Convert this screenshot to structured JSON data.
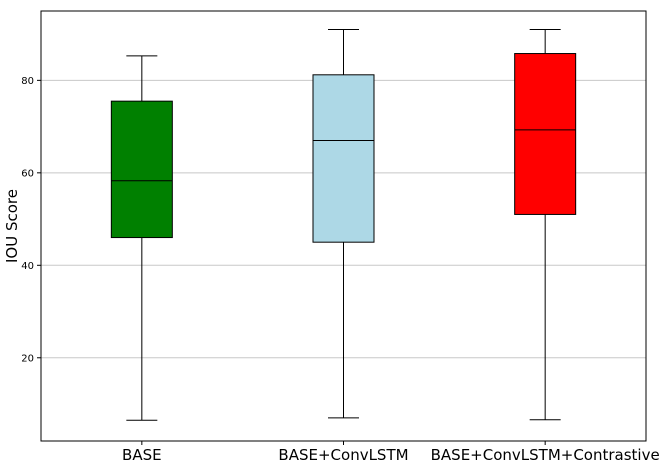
{
  "chart_data": {
    "type": "boxplot",
    "ylabel": "IOU Score",
    "xlabel": "",
    "title": "",
    "ylim": [
      2,
      95
    ],
    "yticks": [
      20,
      40,
      60,
      80
    ],
    "grid": "horizontal",
    "categories": [
      "BASE",
      "BASE+ConvLSTM",
      "BASE+ConvLSTM+Contrastive"
    ],
    "boxes": [
      {
        "category": "BASE",
        "whisker_low": 6.5,
        "q1": 46,
        "median": 58.3,
        "q3": 75.5,
        "whisker_high": 85.3,
        "color": "#008000"
      },
      {
        "category": "BASE+ConvLSTM",
        "whisker_low": 7.0,
        "q1": 45,
        "median": 67.0,
        "q3": 81.2,
        "whisker_high": 91.0,
        "color": "#add8e6"
      },
      {
        "category": "BASE+ConvLSTM+Contrastive",
        "whisker_low": 6.6,
        "q1": 51,
        "median": 69.3,
        "q3": 85.8,
        "whisker_high": 91.0,
        "color": "#ff0000"
      }
    ]
  }
}
